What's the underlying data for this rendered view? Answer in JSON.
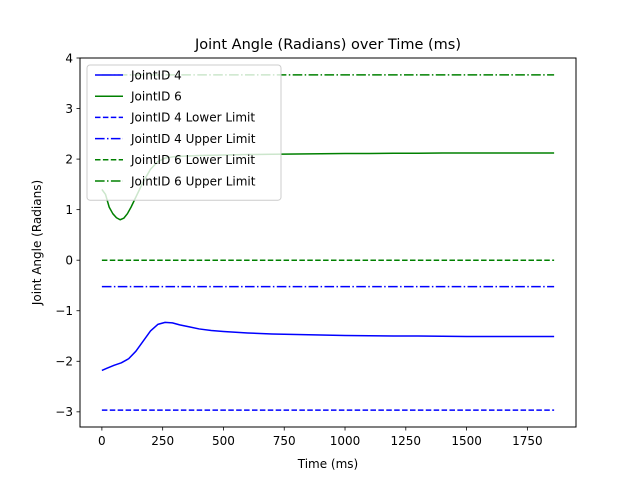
{
  "chart_data": {
    "type": "line",
    "title": "Joint Angle (Radians) over Time (ms)",
    "xlabel": "Time (ms)",
    "ylabel": "Joint Angle (Radians)",
    "xlim": [
      -90,
      1950
    ],
    "ylim": [
      -3.3,
      4.0
    ],
    "xticks": [
      0,
      250,
      500,
      750,
      1000,
      1250,
      1500,
      1750
    ],
    "yticks": [
      -3,
      -2,
      -1,
      0,
      1,
      2,
      3,
      4
    ],
    "x_tick_labels": [
      "0",
      "250",
      "500",
      "750",
      "1000",
      "1250",
      "1500",
      "1750"
    ],
    "y_tick_labels": [
      "−3",
      "−2",
      "−1",
      "0",
      "1",
      "2",
      "3",
      "4"
    ],
    "grid": false,
    "legend_position": "top-left",
    "series": [
      {
        "name": "JointID 4",
        "color": "#0000ff",
        "style": "solid",
        "x": [
          0,
          20,
          50,
          80,
          110,
          140,
          170,
          200,
          230,
          260,
          290,
          320,
          360,
          400,
          450,
          500,
          600,
          700,
          800,
          900,
          1000,
          1100,
          1200,
          1300,
          1400,
          1500,
          1600,
          1700,
          1860
        ],
        "y": [
          -2.18,
          -2.14,
          -2.08,
          -2.03,
          -1.95,
          -1.8,
          -1.6,
          -1.4,
          -1.27,
          -1.23,
          -1.24,
          -1.28,
          -1.32,
          -1.36,
          -1.39,
          -1.41,
          -1.44,
          -1.46,
          -1.47,
          -1.48,
          -1.49,
          -1.495,
          -1.5,
          -1.5,
          -1.505,
          -1.51,
          -1.51,
          -1.51,
          -1.51
        ]
      },
      {
        "name": "JointID 6",
        "color": "#008000",
        "style": "solid",
        "x": [
          0,
          15,
          30,
          45,
          60,
          75,
          90,
          105,
          120,
          140,
          170,
          200,
          230,
          260,
          300,
          350,
          400,
          500,
          600,
          700,
          800,
          900,
          1000,
          1100,
          1200,
          1300,
          1400,
          1500,
          1600,
          1700,
          1860
        ],
        "y": [
          1.4,
          1.3,
          1.05,
          0.92,
          0.84,
          0.8,
          0.83,
          0.92,
          1.05,
          1.25,
          1.55,
          1.8,
          1.95,
          2.02,
          2.05,
          2.06,
          2.07,
          2.08,
          2.09,
          2.095,
          2.1,
          2.105,
          2.11,
          2.11,
          2.115,
          2.115,
          2.12,
          2.12,
          2.12,
          2.12,
          2.12
        ]
      },
      {
        "name": "JointID 4 Lower Limit",
        "color": "#0000ff",
        "style": "dashed",
        "x": [
          0,
          1860
        ],
        "y": [
          -2.967,
          -2.967
        ]
      },
      {
        "name": "JointID 4 Upper Limit",
        "color": "#0000ff",
        "style": "dashdot",
        "x": [
          0,
          1860
        ],
        "y": [
          -0.524,
          -0.524
        ]
      },
      {
        "name": "JointID 6 Lower Limit",
        "color": "#008000",
        "style": "dashed",
        "x": [
          0,
          1860
        ],
        "y": [
          0.0,
          0.0
        ]
      },
      {
        "name": "JointID 6 Upper Limit",
        "color": "#008000",
        "style": "dashdot",
        "x": [
          0,
          1860
        ],
        "y": [
          3.665,
          3.665
        ]
      }
    ]
  }
}
